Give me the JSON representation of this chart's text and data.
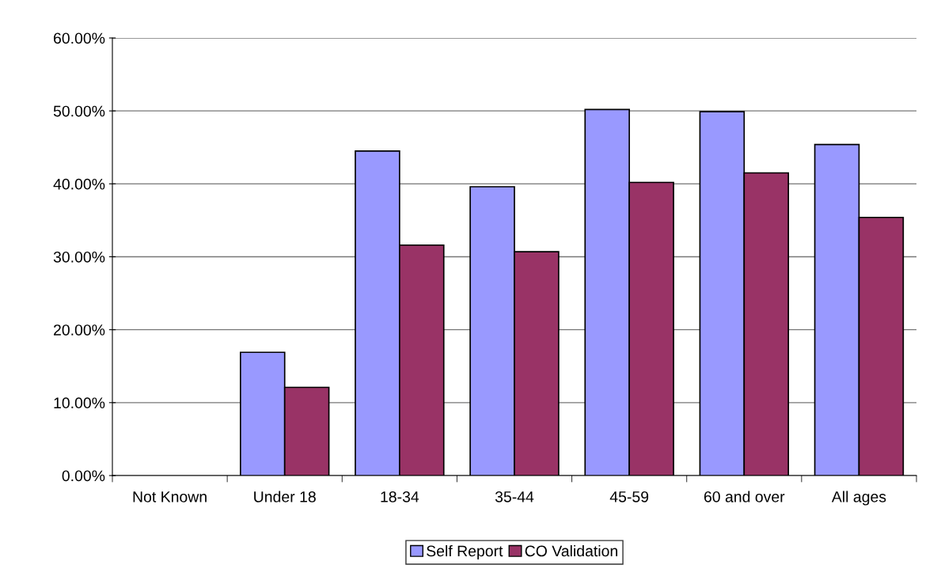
{
  "chart_data": {
    "type": "bar",
    "categories": [
      "Not Known",
      "Under 18",
      "18-34",
      "35-44",
      "45-59",
      "60 and over",
      "All ages"
    ],
    "series": [
      {
        "name": "Self Report",
        "color": "#9999ff",
        "values": [
          null,
          16.9,
          44.5,
          39.6,
          50.2,
          49.9,
          45.4
        ]
      },
      {
        "name": "CO Validation",
        "color": "#993366",
        "values": [
          null,
          12.1,
          31.6,
          30.7,
          40.2,
          41.5,
          35.4
        ]
      }
    ],
    "ylim": [
      0,
      60
    ],
    "yticks": [
      {
        "value": 0,
        "label": "0.00%"
      },
      {
        "value": 10,
        "label": "10.00%"
      },
      {
        "value": 20,
        "label": "20.00%"
      },
      {
        "value": 30,
        "label": "30.00%"
      },
      {
        "value": 40,
        "label": "40.00%"
      },
      {
        "value": 50,
        "label": "50.00%"
      },
      {
        "value": 60,
        "label": "60.00%"
      }
    ],
    "grid": "y",
    "legend": "bottom"
  }
}
